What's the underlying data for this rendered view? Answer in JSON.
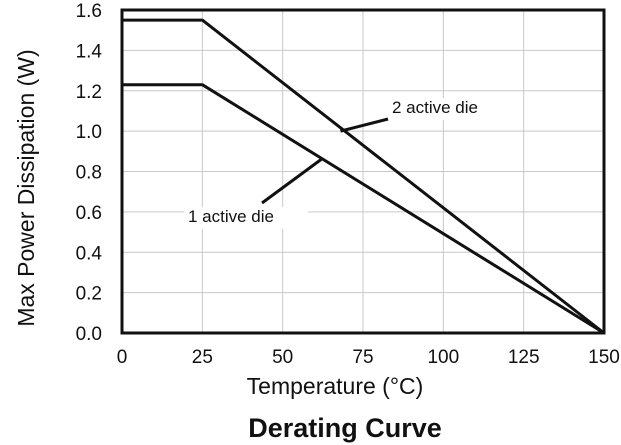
{
  "chart_data": {
    "type": "line",
    "title": "Derating Curve",
    "xlabel": "Temperature (°C)",
    "ylabel": "Max Power Dissipation (W)",
    "xlim": [
      0,
      150
    ],
    "ylim": [
      0,
      1.6
    ],
    "x_ticks": [
      "0",
      "25",
      "50",
      "75",
      "100",
      "125",
      "150"
    ],
    "y_ticks": [
      "0.0",
      "0.2",
      "0.4",
      "0.6",
      "0.8",
      "1.0",
      "1.2",
      "1.4",
      "1.6"
    ],
    "grid": true,
    "series": [
      {
        "name": "2 active die",
        "x": [
          0,
          25,
          150
        ],
        "y": [
          1.55,
          1.55,
          0
        ]
      },
      {
        "name": "1 active die",
        "x": [
          0,
          25,
          150
        ],
        "y": [
          1.23,
          1.23,
          0
        ]
      }
    ],
    "annotations": [
      {
        "text": "2 active die",
        "series": 0,
        "point_x": 68,
        "point_y": 1.0
      },
      {
        "text": "1 active die",
        "series": 1,
        "point_x": 62,
        "point_y": 0.86
      }
    ]
  }
}
